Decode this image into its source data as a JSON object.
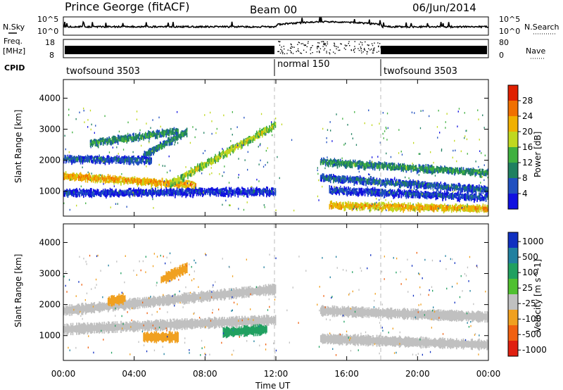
{
  "header": {
    "station": "Prince George (fitACF)",
    "beam": "Beam 00",
    "date": "06/Jun/2014"
  },
  "noise_panel": {
    "left_label": "N.Sky",
    "right_label": "N.Search",
    "left_ticks": [
      "10^5",
      "10^0"
    ],
    "right_ticks": [
      "10^5",
      "10^0"
    ]
  },
  "freq_panel": {
    "left_label": "Freq.",
    "left_unit": "[MHz]",
    "left_ticks": [
      "18",
      "8"
    ],
    "right_label": "Nave",
    "right_ticks": [
      "80",
      "0"
    ]
  },
  "cpid": {
    "label": "CPID",
    "segments": [
      {
        "name": "twofsound 3503",
        "start_h": 0,
        "end_h": 12
      },
      {
        "name": "normal 150",
        "start_h": 12,
        "end_h": 18
      },
      {
        "name": "twofsound 3503",
        "start_h": 18,
        "end_h": 24
      }
    ]
  },
  "chart_data": [
    {
      "type": "heatmap",
      "panel": "power",
      "ylabel": "Slant Range [km]",
      "yticks": [
        1000,
        2000,
        3000,
        4000
      ],
      "ylim": [
        200,
        4600
      ],
      "colorbar": {
        "label": "Power [dB]",
        "ticks": [
          4,
          8,
          12,
          16,
          20,
          24,
          28
        ],
        "range": [
          0,
          32
        ],
        "colors": [
          "#1010e0",
          "#2050c0",
          "#208060",
          "#40b040",
          "#c0d820",
          "#f0b000",
          "#f07000",
          "#e02000"
        ]
      },
      "bands": [
        {
          "from_h": 0,
          "to_h": 7.5,
          "range_start": 1550,
          "range_end": 1250,
          "power": 26
        },
        {
          "from_h": 6,
          "to_h": 12,
          "range_start": 1300,
          "range_end": 3200,
          "power": 20
        },
        {
          "from_h": 1.5,
          "to_h": 6.5,
          "range_start": 2600,
          "range_end": 3000,
          "power": 14
        },
        {
          "from_h": 4.5,
          "to_h": 7,
          "range_start": 2200,
          "range_end": 3000,
          "power": 13
        },
        {
          "from_h": 0,
          "to_h": 5,
          "range_start": 2100,
          "range_end": 2050,
          "power": 10
        },
        {
          "from_h": 0,
          "to_h": 12,
          "range_start": 1000,
          "range_end": 1050,
          "power": 7
        },
        {
          "from_h": 14.5,
          "to_h": 24,
          "range_start": 2000,
          "range_end": 1650,
          "power": 14
        },
        {
          "from_h": 14.5,
          "to_h": 24,
          "range_start": 1500,
          "range_end": 1100,
          "power": 10
        },
        {
          "from_h": 15,
          "to_h": 24,
          "range_start": 1100,
          "range_end": 850,
          "power": 8
        },
        {
          "from_h": 15,
          "to_h": 24,
          "range_start": 600,
          "range_end": 500,
          "power": 25
        }
      ]
    },
    {
      "type": "heatmap",
      "panel": "velocity",
      "ylabel": "Slant Range [km]",
      "yticks": [
        1000,
        2000,
        3000,
        4000
      ],
      "ylim": [
        200,
        4600
      ],
      "xlabel": "Time UT",
      "xticks": [
        "00:00",
        "04:00",
        "08:00",
        "12:00",
        "16:00",
        "20:00",
        "00:00"
      ],
      "xlim": [
        0,
        24
      ],
      "colorbar": {
        "label": "Velocity [m s^-1]",
        "ticks": [
          "1000",
          "500",
          "100",
          "25",
          "-25",
          "-100",
          "-500",
          "-1000"
        ],
        "colors": [
          "#1030c0",
          "#2080a0",
          "#20a060",
          "#50c030",
          "#c0c0c0",
          "#f0a020",
          "#f06010",
          "#e02010"
        ]
      },
      "bands": [
        {
          "from_h": 0,
          "to_h": 12,
          "range_start": 1800,
          "range_end": 2500,
          "velocity": 0
        },
        {
          "from_h": 0,
          "to_h": 12,
          "range_start": 1200,
          "range_end": 1500,
          "velocity": 0
        },
        {
          "from_h": 2.5,
          "to_h": 3.5,
          "range_start": 2100,
          "range_end": 2200,
          "velocity": -80
        },
        {
          "from_h": 5.5,
          "to_h": 7,
          "range_start": 2800,
          "range_end": 3200,
          "velocity": -80
        },
        {
          "from_h": 4.5,
          "to_h": 6.5,
          "range_start": 950,
          "range_end": 950,
          "velocity": -60
        },
        {
          "from_h": 9,
          "to_h": 11.5,
          "range_start": 1100,
          "range_end": 1200,
          "velocity": 80
        },
        {
          "from_h": 14.5,
          "to_h": 24,
          "range_start": 1800,
          "range_end": 1600,
          "velocity": 0
        },
        {
          "from_h": 14.5,
          "to_h": 24,
          "range_start": 900,
          "range_end": 700,
          "velocity": 0
        }
      ]
    }
  ]
}
